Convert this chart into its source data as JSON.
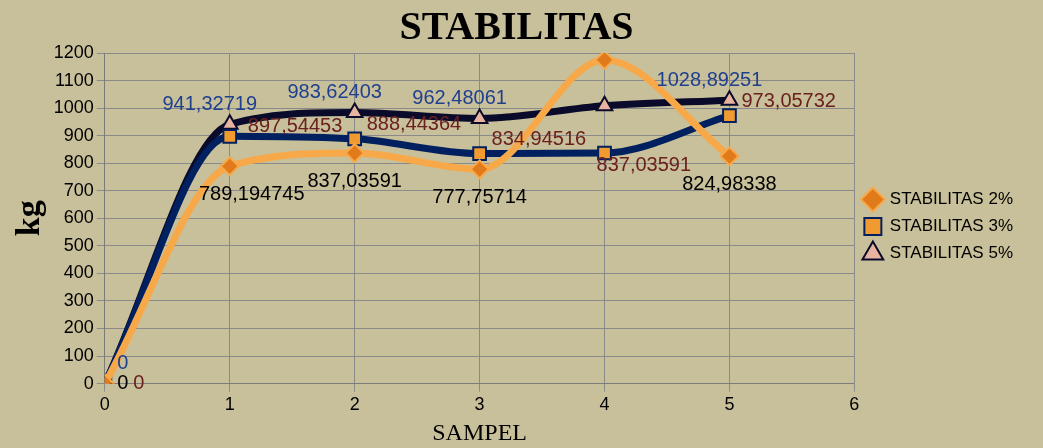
{
  "chart_data": {
    "type": "line",
    "title": "STABILITAS",
    "xlabel": "SAMPEL",
    "ylabel": "kg",
    "x": [
      0,
      1,
      2,
      3,
      4,
      5
    ],
    "xlim": [
      0,
      6
    ],
    "xticks": [
      0,
      1,
      2,
      3,
      4,
      5,
      6
    ],
    "ylim": [
      0,
      1200
    ],
    "yticks": [
      0,
      100,
      200,
      300,
      400,
      500,
      600,
      700,
      800,
      900,
      1000,
      1100,
      1200
    ],
    "grid": true,
    "legend": "right",
    "series": [
      {
        "name": "STABILITAS 2%",
        "color": "#f7a94a",
        "marker": "diamond",
        "values": [
          0,
          789.194745,
          837.03591,
          777.75714,
          1175,
          824.98338
        ],
        "value_labels": [
          "0",
          "789,194745",
          "837,03591",
          "777,75714",
          null,
          "824,98338"
        ]
      },
      {
        "name": "STABILITAS 3%",
        "color": "#002060",
        "marker": "square",
        "values": [
          0,
          897.54453,
          888.44364,
          834.94516,
          837.03591,
          973.05732
        ],
        "value_labels": [
          "0",
          "897,54453",
          "888,44364",
          "834,94516",
          "837,03591",
          "973,05732"
        ]
      },
      {
        "name": "STABILITAS 5%",
        "color": "#0a0a2a",
        "marker": "triangle",
        "values": [
          0,
          941.32719,
          983.62403,
          962.48061,
          1008.477,
          1028.89251
        ],
        "value_labels": [
          "0",
          "941,32719",
          "983,62403",
          "962,48061",
          null,
          "1028,89251"
        ]
      }
    ]
  }
}
